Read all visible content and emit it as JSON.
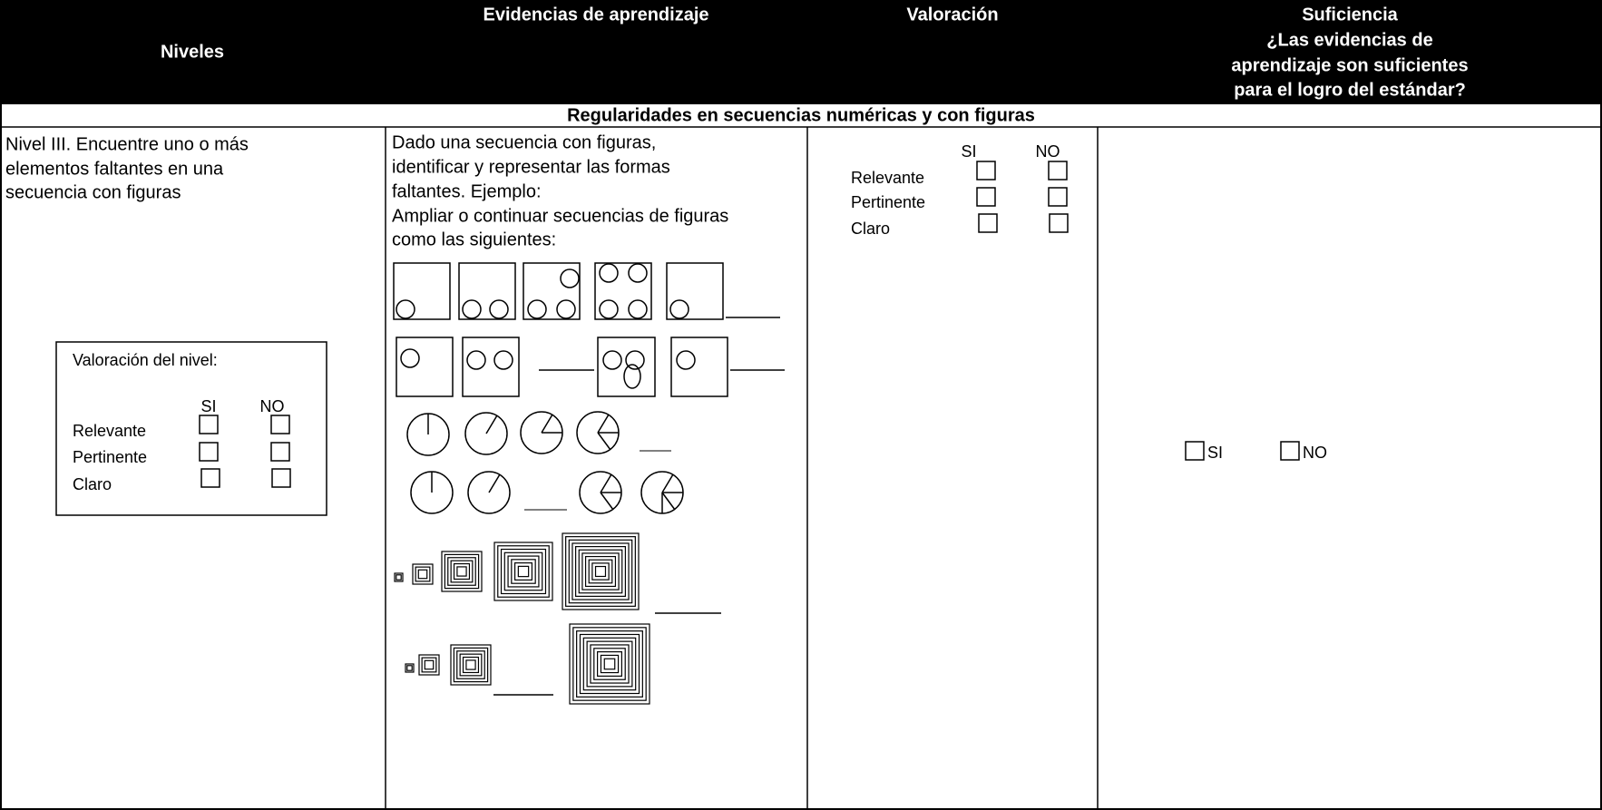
{
  "header": {
    "niveles": "Niveles",
    "evidencias": "Evidencias de aprendizaje",
    "valoracion": "Valoración",
    "suficiencia": {
      "title": "Suficiencia",
      "question_lines": [
        "¿Las evidencias de",
        "aprendizaje son suficientes",
        "para el logro del estándar?"
      ]
    }
  },
  "section": "Regularidades en secuencias numéricas y con figuras",
  "row": {
    "nivel_lines": [
      "Nivel III. Encuentre uno o más",
      "elementos faltantes en una",
      "secuencia con figuras"
    ],
    "level_box": {
      "title": "Valoración del nivel:",
      "si": "SI",
      "no": "NO",
      "criteria": [
        "Relevante",
        "Pertinente",
        "Claro"
      ]
    },
    "evidencias_lines": [
      "Dado una secuencia con figuras,",
      "identificar y representar las formas",
      "faltantes. Ejemplo:",
      "Ampliar o continuar secuencias de figuras",
      "como las siguientes:"
    ],
    "valoracion": {
      "si": "SI",
      "no": "NO",
      "criteria": [
        "Relevante",
        "Pertinente",
        "Claro"
      ]
    },
    "suficiencia": {
      "si": "SI",
      "no": "NO"
    }
  }
}
